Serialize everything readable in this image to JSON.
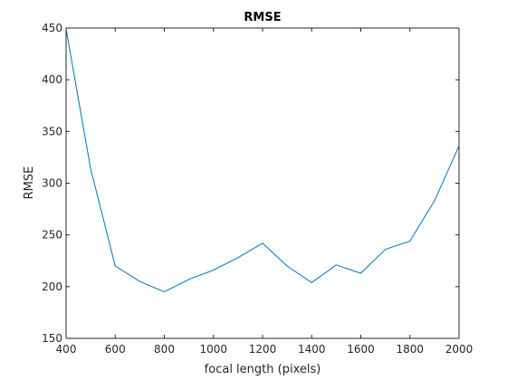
{
  "chart_data": {
    "type": "line",
    "title": "RMSE",
    "xlabel": "focal length (pixels)",
    "ylabel": "RMSE",
    "xlim": [
      400,
      2000
    ],
    "ylim": [
      150,
      450
    ],
    "xticks": [
      400,
      600,
      800,
      1000,
      1200,
      1400,
      1600,
      1800,
      2000
    ],
    "yticks": [
      150,
      200,
      250,
      300,
      350,
      400,
      450
    ],
    "grid": false,
    "legend": "none",
    "series": [
      {
        "color": "#0072BD",
        "x": [
          400,
          500,
          600,
          700,
          800,
          900,
          1000,
          1100,
          1200,
          1300,
          1400,
          1500,
          1600,
          1700,
          1800,
          1900,
          2000
        ],
        "y": [
          449,
          314,
          220,
          205,
          195,
          207,
          216,
          228,
          242,
          220,
          204,
          221,
          213,
          236,
          244,
          283,
          336
        ]
      }
    ]
  }
}
